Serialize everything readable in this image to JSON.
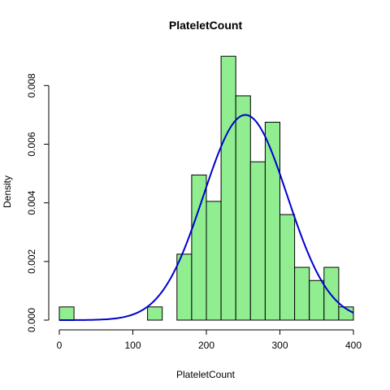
{
  "chart_data": {
    "type": "bar",
    "title": "PlateletCount",
    "xlabel": "PlateletCount",
    "ylabel": "Density",
    "xlim": [
      0,
      400
    ],
    "ylim": [
      0,
      0.0092
    ],
    "x_ticks": [
      0,
      100,
      200,
      300,
      400
    ],
    "y_ticks": [
      0.0,
      0.002,
      0.004,
      0.006,
      0.008
    ],
    "y_tick_labels": [
      "0.000",
      "0.002",
      "0.004",
      "0.006",
      "0.008"
    ],
    "bin_width": 20,
    "bins": [
      {
        "start": 0,
        "end": 20,
        "density": 0.00045
      },
      {
        "start": 20,
        "end": 40,
        "density": 0
      },
      {
        "start": 40,
        "end": 60,
        "density": 0
      },
      {
        "start": 60,
        "end": 80,
        "density": 0
      },
      {
        "start": 80,
        "end": 100,
        "density": 0
      },
      {
        "start": 100,
        "end": 120,
        "density": 0
      },
      {
        "start": 120,
        "end": 140,
        "density": 0.00045
      },
      {
        "start": 140,
        "end": 160,
        "density": 0
      },
      {
        "start": 160,
        "end": 180,
        "density": 0.00225
      },
      {
        "start": 180,
        "end": 200,
        "density": 0.00495
      },
      {
        "start": 200,
        "end": 220,
        "density": 0.00405
      },
      {
        "start": 220,
        "end": 240,
        "density": 0.009
      },
      {
        "start": 240,
        "end": 260,
        "density": 0.00765
      },
      {
        "start": 260,
        "end": 280,
        "density": 0.0054
      },
      {
        "start": 280,
        "end": 300,
        "density": 0.00675
      },
      {
        "start": 300,
        "end": 320,
        "density": 0.0036
      },
      {
        "start": 320,
        "end": 340,
        "density": 0.0018
      },
      {
        "start": 340,
        "end": 360,
        "density": 0.00135
      },
      {
        "start": 360,
        "end": 380,
        "density": 0.0018
      },
      {
        "start": 380,
        "end": 400,
        "density": 0.00045
      }
    ],
    "curve": {
      "type": "normal-density",
      "mean": 253,
      "sd": 57,
      "x_range": [
        0,
        400
      ]
    },
    "colors": {
      "bar_fill": "#90EE90",
      "bar_stroke": "#000000",
      "curve": "#0000CD"
    },
    "grid": false,
    "legend": "none"
  }
}
